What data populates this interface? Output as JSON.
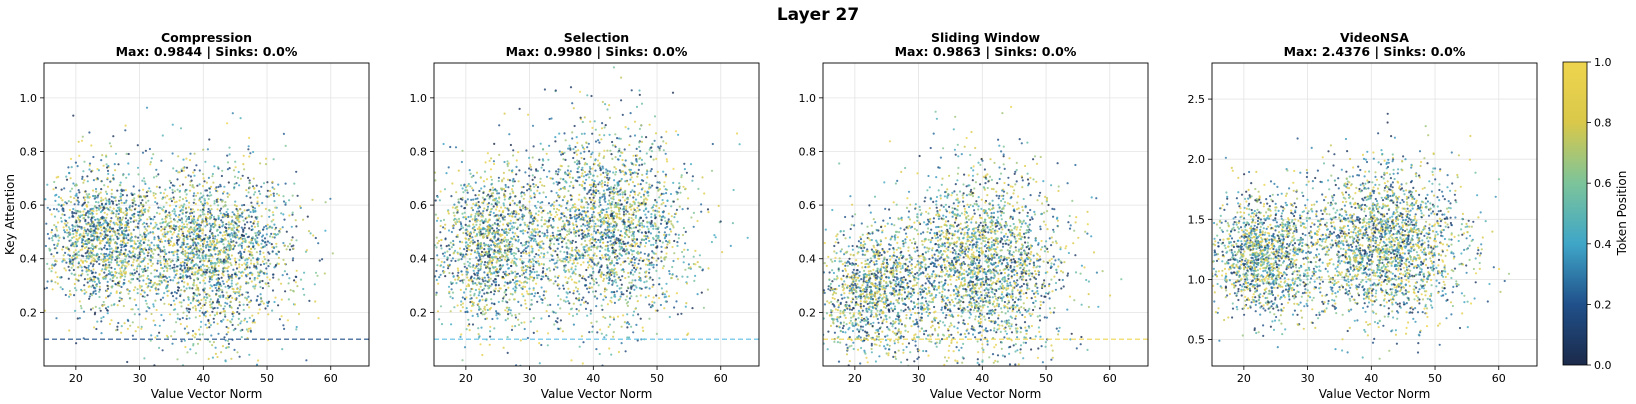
{
  "figure": {
    "title": "Layer 27"
  },
  "colorbar": {
    "label": "Token Position",
    "range": [
      0.0,
      1.0
    ],
    "ticks": [
      "0.0",
      "0.2",
      "0.4",
      "0.6",
      "0.8",
      "1.0"
    ],
    "colormap": [
      "#1b2a4a",
      "#20508a",
      "#3fa6c8",
      "#7cc49a",
      "#d9c84a",
      "#efd54e"
    ]
  },
  "chart_data": [
    {
      "type": "scatter",
      "title": "Compression",
      "subtitle": "Max: 0.9844 | Sinks: 0.0%",
      "xlabel": "Value Vector Norm",
      "ylabel": "Key Attention",
      "xlim": [
        15,
        66
      ],
      "ylim": [
        0.0,
        1.13
      ],
      "xticks": [
        "20",
        "30",
        "40",
        "50",
        "60"
      ],
      "xtick_values": [
        20,
        30,
        40,
        50,
        60
      ],
      "yticks": [
        "0.2",
        "0.4",
        "0.6",
        "0.8",
        "1.0"
      ],
      "ytick_values": [
        0.2,
        0.4,
        0.6,
        0.8,
        1.0
      ],
      "threshold": 0.1,
      "threshold_color": "#20508a",
      "grid": true,
      "clusters": [
        {
          "cx": 24,
          "cy": 0.48,
          "sx": 4.5,
          "sy": 0.13,
          "n": 1400
        },
        {
          "cx": 41,
          "cy": 0.42,
          "sx": 6.5,
          "sy": 0.16,
          "n": 2200
        }
      ]
    },
    {
      "type": "scatter",
      "title": "Selection",
      "subtitle": "Max: 0.9980 | Sinks: 0.0%",
      "xlabel": "Value Vector Norm",
      "ylabel": "",
      "xlim": [
        15,
        66
      ],
      "ylim": [
        0.0,
        1.13
      ],
      "xticks": [
        "20",
        "30",
        "40",
        "50",
        "60"
      ],
      "xtick_values": [
        20,
        30,
        40,
        50,
        60
      ],
      "yticks": [
        "0.2",
        "0.4",
        "0.6",
        "0.8",
        "1.0"
      ],
      "ytick_values": [
        0.2,
        0.4,
        0.6,
        0.8,
        1.0
      ],
      "threshold": 0.1,
      "threshold_color": "#5bc0e6",
      "grid": true,
      "clusters": [
        {
          "cx": 24,
          "cy": 0.44,
          "sx": 4.5,
          "sy": 0.15,
          "n": 1400
        },
        {
          "cx": 42,
          "cy": 0.52,
          "sx": 6.5,
          "sy": 0.18,
          "n": 2200
        }
      ]
    },
    {
      "type": "scatter",
      "title": "Sliding Window",
      "subtitle": "Max: 0.9863 | Sinks: 0.0%",
      "xlabel": "Value Vector Norm",
      "ylabel": "",
      "xlim": [
        15,
        66
      ],
      "ylim": [
        0.0,
        1.13
      ],
      "xticks": [
        "20",
        "30",
        "40",
        "50",
        "60"
      ],
      "xtick_values": [
        20,
        30,
        40,
        50,
        60
      ],
      "yticks": [
        "0.2",
        "0.4",
        "0.6",
        "0.8",
        "1.0"
      ],
      "ytick_values": [
        0.2,
        0.4,
        0.6,
        0.8,
        1.0
      ],
      "threshold": 0.1,
      "threshold_color": "#efd54e",
      "grid": true,
      "clusters": [
        {
          "cx": 23,
          "cy": 0.28,
          "sx": 5,
          "sy": 0.12,
          "n": 1300
        },
        {
          "cx": 40,
          "cy": 0.38,
          "sx": 6.5,
          "sy": 0.18,
          "n": 2300
        }
      ]
    },
    {
      "type": "scatter",
      "title": "VideoNSA",
      "subtitle": "Max: 2.4376 | Sinks: 0.0%",
      "xlabel": "Value Vector Norm",
      "ylabel": "",
      "xlim": [
        15,
        66
      ],
      "ylim": [
        0.28,
        2.8
      ],
      "xticks": [
        "20",
        "30",
        "40",
        "50",
        "60"
      ],
      "xtick_values": [
        20,
        30,
        40,
        50,
        60
      ],
      "yticks": [
        "0.5",
        "1.0",
        "1.5",
        "2.0",
        "2.5"
      ],
      "ytick_values": [
        0.5,
        1.0,
        1.5,
        2.0,
        2.5
      ],
      "threshold": null,
      "grid": true,
      "clusters": [
        {
          "cx": 23,
          "cy": 1.2,
          "sx": 4.5,
          "sy": 0.25,
          "n": 1400
        },
        {
          "cx": 42,
          "cy": 1.3,
          "sx": 6.5,
          "sy": 0.32,
          "n": 2200
        }
      ]
    }
  ]
}
